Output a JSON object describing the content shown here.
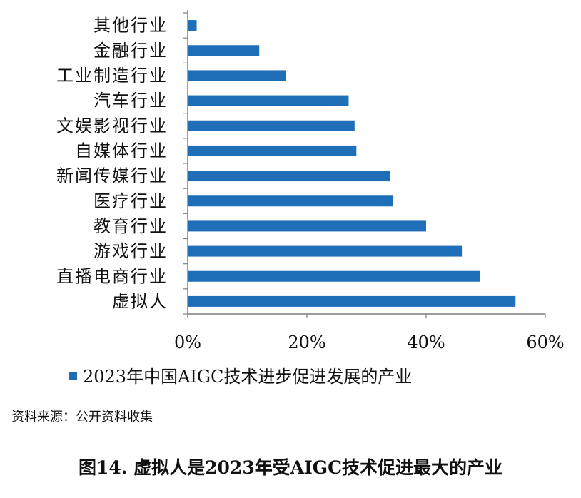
{
  "chart_data": {
    "type": "bar",
    "orientation": "horizontal",
    "categories": [
      "其他行业",
      "金融行业",
      "工业制造行业",
      "汽车行业",
      "文娱影视行业",
      "自媒体行业",
      "新闻传媒行业",
      "医疗行业",
      "教育行业",
      "游戏行业",
      "直播电商行业",
      "虚拟人"
    ],
    "series": [
      {
        "name": "2023年中国AIGC技术进步促进发展的产业",
        "values": [
          1.5,
          12,
          16.5,
          27,
          28,
          28.3,
          34,
          34.5,
          40,
          46,
          49,
          55
        ]
      }
    ],
    "x_ticks": [
      "0%",
      "20%",
      "40%",
      "60%"
    ],
    "xlim": [
      0,
      60
    ],
    "grid": false,
    "legend_position": "bottom",
    "color": "#1F6FB8"
  },
  "source": "资料来源：公开资料收集",
  "caption": "图14. 虚拟人是2023年受AIGC技术促进最大的产业"
}
